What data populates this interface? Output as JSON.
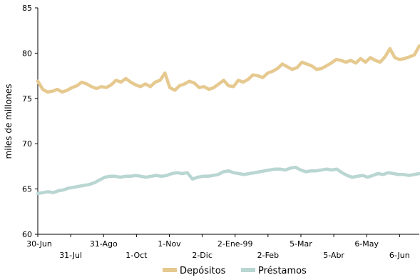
{
  "chart_data": {
    "type": "line",
    "title": "",
    "xlabel": "",
    "ylabel": "miles de millones",
    "ylim": [
      60,
      85
    ],
    "yticks": [
      60,
      65,
      70,
      75,
      80,
      85
    ],
    "grid": false,
    "legend_position": "bottom",
    "x_tick_labels": [
      "30-Jun",
      "31-Jul",
      "31-Ago",
      "1-Oct",
      "1-Nov",
      "2-Dic",
      "2-Ene-99",
      "2-Feb",
      "5-Mar",
      "5-Abr",
      "6-May",
      "6-Jun"
    ],
    "series": [
      {
        "name": "Depósitos",
        "color": "#e6c98f",
        "values": [
          76.9,
          76.0,
          75.7,
          75.8,
          76.0,
          75.7,
          75.9,
          76.2,
          76.4,
          76.8,
          76.6,
          76.3,
          76.1,
          76.3,
          76.2,
          76.5,
          77.0,
          76.8,
          77.2,
          76.8,
          76.5,
          76.3,
          76.6,
          76.3,
          76.8,
          77.0,
          77.8,
          76.2,
          75.9,
          76.4,
          76.6,
          76.9,
          76.7,
          76.2,
          76.3,
          76.0,
          76.2,
          76.6,
          77.0,
          76.4,
          76.3,
          77.0,
          76.8,
          77.1,
          77.6,
          77.5,
          77.3,
          77.8,
          78.0,
          78.3,
          78.8,
          78.5,
          78.2,
          78.4,
          79.0,
          78.8,
          78.6,
          78.2,
          78.3,
          78.6,
          78.9,
          79.3,
          79.2,
          79.0,
          79.2,
          78.9,
          79.4,
          79.0,
          79.5,
          79.2,
          79.0,
          79.6,
          80.5,
          79.5,
          79.3,
          79.4,
          79.6,
          79.8,
          80.8
        ]
      },
      {
        "name": "Préstamos",
        "color": "#b9d6d2",
        "values": [
          64.5,
          64.6,
          64.7,
          64.6,
          64.8,
          64.9,
          65.1,
          65.2,
          65.3,
          65.4,
          65.5,
          65.7,
          66.0,
          66.3,
          66.4,
          66.4,
          66.3,
          66.4,
          66.4,
          66.5,
          66.4,
          66.3,
          66.4,
          66.5,
          66.4,
          66.5,
          66.7,
          66.8,
          66.7,
          66.8,
          66.1,
          66.3,
          66.4,
          66.4,
          66.5,
          66.6,
          66.9,
          67.0,
          66.8,
          66.7,
          66.6,
          66.7,
          66.8,
          66.9,
          67.0,
          67.1,
          67.2,
          67.2,
          67.1,
          67.3,
          67.4,
          67.1,
          66.9,
          67.0,
          67.0,
          67.1,
          67.2,
          67.1,
          67.2,
          66.8,
          66.5,
          66.3,
          66.4,
          66.5,
          66.3,
          66.5,
          66.7,
          66.6,
          66.8,
          66.7,
          66.6,
          66.6,
          66.5,
          66.6,
          66.7
        ]
      }
    ]
  }
}
